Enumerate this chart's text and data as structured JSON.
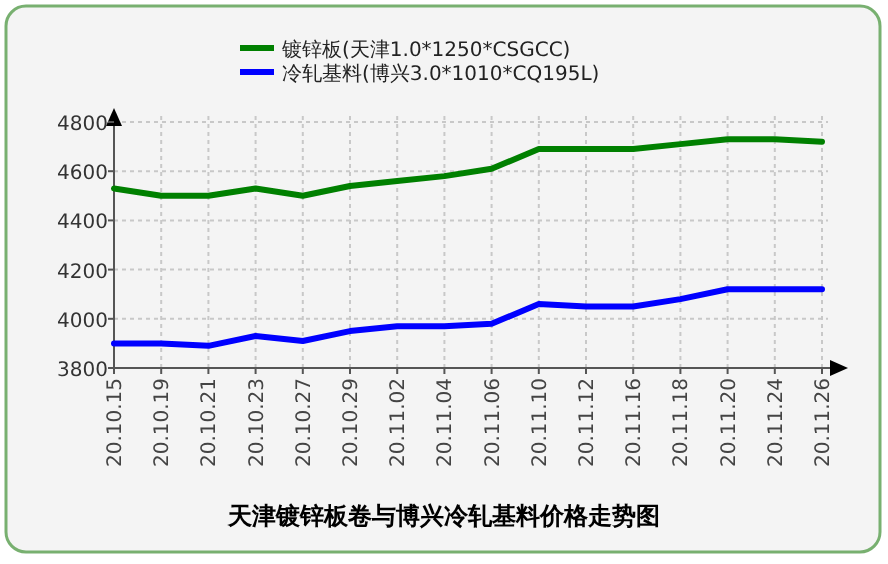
{
  "chart_data": {
    "type": "line",
    "title": "天津镀锌板卷与博兴冷轧基料价格走势图",
    "categories": [
      "20.10.15",
      "20.10.19",
      "20.10.21",
      "20.10.23",
      "20.10.27",
      "20.10.29",
      "20.11.02",
      "20.11.04",
      "20.11.06",
      "20.11.10",
      "20.11.12",
      "20.11.16",
      "20.11.18",
      "20.11.20",
      "20.11.24",
      "20.11.26"
    ],
    "series": [
      {
        "name": "镀锌板(天津1.0*1250*CSGCC)",
        "color": "#008000",
        "values": [
          4530,
          4500,
          4500,
          4530,
          4500,
          4540,
          4560,
          4580,
          4610,
          4690,
          4690,
          4690,
          4710,
          4730,
          4730,
          4720
        ]
      },
      {
        "name": "冷轧基料(博兴3.0*1010*CQ195L)",
        "color": "#0000ff",
        "values": [
          3900,
          3900,
          3890,
          3930,
          3910,
          3950,
          3970,
          3970,
          3980,
          4060,
          4050,
          4050,
          4080,
          4120,
          4120,
          4120
        ]
      }
    ],
    "ylim": [
      3800,
      4800
    ],
    "yticks": [
      3800,
      4000,
      4200,
      4400,
      4600,
      4800
    ],
    "grid": true,
    "legend": "top"
  }
}
